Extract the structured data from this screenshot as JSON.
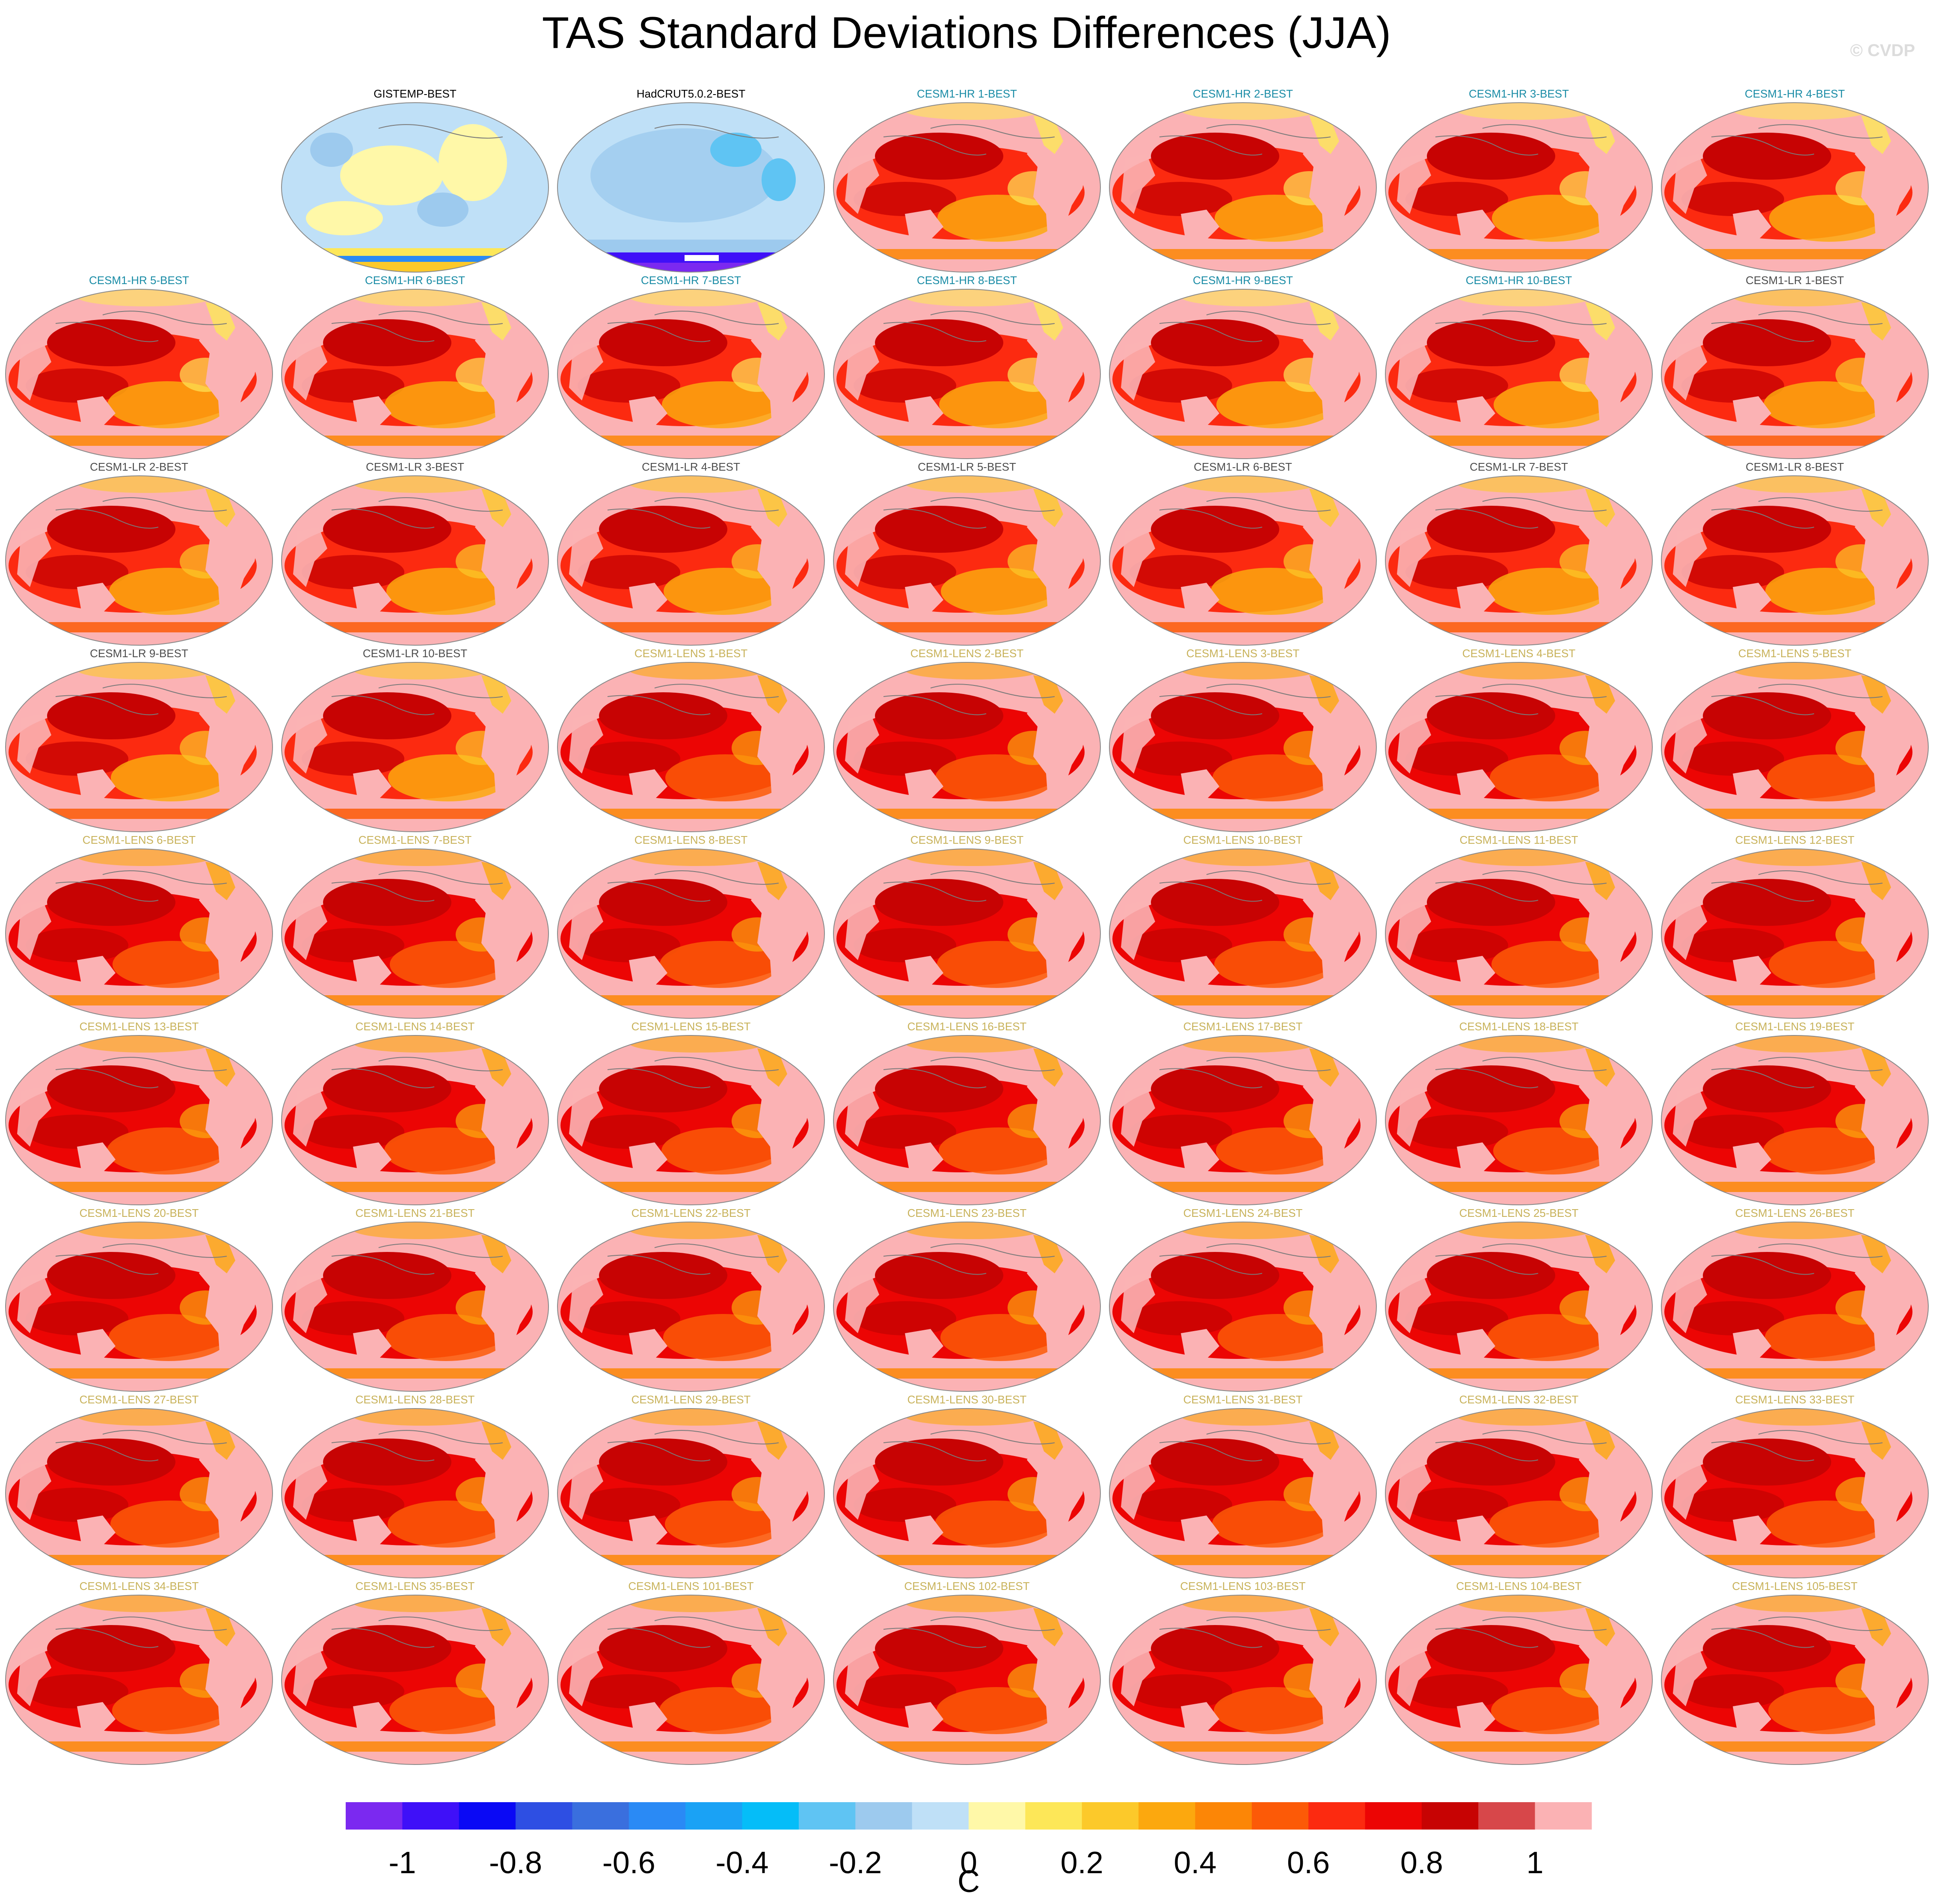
{
  "title": "TAS Standard Deviations Differences (JJA)",
  "credit": "© CVDP",
  "panels": [
    {
      "label": "GISTEMP-BEST",
      "group": "obs",
      "style": "gistemp"
    },
    {
      "label": "HadCRUT5.0.2-BEST",
      "group": "obs",
      "style": "hadcrut"
    },
    {
      "label": "CESM1-HR 1-BEST",
      "group": "hr",
      "style": "hr"
    },
    {
      "label": "CESM1-HR 2-BEST",
      "group": "hr",
      "style": "hr"
    },
    {
      "label": "CESM1-HR 3-BEST",
      "group": "hr",
      "style": "hr"
    },
    {
      "label": "CESM1-HR 4-BEST",
      "group": "hr",
      "style": "hr"
    },
    {
      "label": "CESM1-HR 5-BEST",
      "group": "hr",
      "style": "hr"
    },
    {
      "label": "CESM1-HR 6-BEST",
      "group": "hr",
      "style": "hr"
    },
    {
      "label": "CESM1-HR 7-BEST",
      "group": "hr",
      "style": "hr"
    },
    {
      "label": "CESM1-HR 8-BEST",
      "group": "hr",
      "style": "hr"
    },
    {
      "label": "CESM1-HR 9-BEST",
      "group": "hr",
      "style": "hr"
    },
    {
      "label": "CESM1-HR 10-BEST",
      "group": "hr",
      "style": "hr"
    },
    {
      "label": "CESM1-LR 1-BEST",
      "group": "lr",
      "style": "lr"
    },
    {
      "label": "CESM1-LR 2-BEST",
      "group": "lr",
      "style": "lr"
    },
    {
      "label": "CESM1-LR 3-BEST",
      "group": "lr",
      "style": "lr"
    },
    {
      "label": "CESM1-LR 4-BEST",
      "group": "lr",
      "style": "lr"
    },
    {
      "label": "CESM1-LR 5-BEST",
      "group": "lr",
      "style": "lr"
    },
    {
      "label": "CESM1-LR 6-BEST",
      "group": "lr",
      "style": "lr"
    },
    {
      "label": "CESM1-LR 7-BEST",
      "group": "lr",
      "style": "lr"
    },
    {
      "label": "CESM1-LR 8-BEST",
      "group": "lr",
      "style": "lr"
    },
    {
      "label": "CESM1-LR 9-BEST",
      "group": "lr",
      "style": "lr"
    },
    {
      "label": "CESM1-LR 10-BEST",
      "group": "lr",
      "style": "lr"
    },
    {
      "label": "CESM1-LENS 1-BEST",
      "group": "lens",
      "style": "lens"
    },
    {
      "label": "CESM1-LENS 2-BEST",
      "group": "lens",
      "style": "lens"
    },
    {
      "label": "CESM1-LENS 3-BEST",
      "group": "lens",
      "style": "lens"
    },
    {
      "label": "CESM1-LENS 4-BEST",
      "group": "lens",
      "style": "lens"
    },
    {
      "label": "CESM1-LENS 5-BEST",
      "group": "lens",
      "style": "lens"
    },
    {
      "label": "CESM1-LENS 6-BEST",
      "group": "lens",
      "style": "lens"
    },
    {
      "label": "CESM1-LENS 7-BEST",
      "group": "lens",
      "style": "lens"
    },
    {
      "label": "CESM1-LENS 8-BEST",
      "group": "lens",
      "style": "lens"
    },
    {
      "label": "CESM1-LENS 9-BEST",
      "group": "lens",
      "style": "lens"
    },
    {
      "label": "CESM1-LENS 10-BEST",
      "group": "lens",
      "style": "lens"
    },
    {
      "label": "CESM1-LENS 11-BEST",
      "group": "lens",
      "style": "lens"
    },
    {
      "label": "CESM1-LENS 12-BEST",
      "group": "lens",
      "style": "lens"
    },
    {
      "label": "CESM1-LENS 13-BEST",
      "group": "lens",
      "style": "lens"
    },
    {
      "label": "CESM1-LENS 14-BEST",
      "group": "lens",
      "style": "lens"
    },
    {
      "label": "CESM1-LENS 15-BEST",
      "group": "lens",
      "style": "lens"
    },
    {
      "label": "CESM1-LENS 16-BEST",
      "group": "lens",
      "style": "lens"
    },
    {
      "label": "CESM1-LENS 17-BEST",
      "group": "lens",
      "style": "lens"
    },
    {
      "label": "CESM1-LENS 18-BEST",
      "group": "lens",
      "style": "lens"
    },
    {
      "label": "CESM1-LENS 19-BEST",
      "group": "lens",
      "style": "lens"
    },
    {
      "label": "CESM1-LENS 20-BEST",
      "group": "lens",
      "style": "lens"
    },
    {
      "label": "CESM1-LENS 21-BEST",
      "group": "lens",
      "style": "lens"
    },
    {
      "label": "CESM1-LENS 22-BEST",
      "group": "lens",
      "style": "lens"
    },
    {
      "label": "CESM1-LENS 23-BEST",
      "group": "lens",
      "style": "lens"
    },
    {
      "label": "CESM1-LENS 24-BEST",
      "group": "lens",
      "style": "lens"
    },
    {
      "label": "CESM1-LENS 25-BEST",
      "group": "lens",
      "style": "lens"
    },
    {
      "label": "CESM1-LENS 26-BEST",
      "group": "lens",
      "style": "lens"
    },
    {
      "label": "CESM1-LENS 27-BEST",
      "group": "lens",
      "style": "lens"
    },
    {
      "label": "CESM1-LENS 28-BEST",
      "group": "lens",
      "style": "lens"
    },
    {
      "label": "CESM1-LENS 29-BEST",
      "group": "lens",
      "style": "lens"
    },
    {
      "label": "CESM1-LENS 30-BEST",
      "group": "lens",
      "style": "lens"
    },
    {
      "label": "CESM1-LENS 31-BEST",
      "group": "lens",
      "style": "lens"
    },
    {
      "label": "CESM1-LENS 32-BEST",
      "group": "lens",
      "style": "lens"
    },
    {
      "label": "CESM1-LENS 33-BEST",
      "group": "lens",
      "style": "lens"
    },
    {
      "label": "CESM1-LENS 34-BEST",
      "group": "lens",
      "style": "lens"
    },
    {
      "label": "CESM1-LENS 35-BEST",
      "group": "lens",
      "style": "lens"
    },
    {
      "label": "CESM1-LENS 101-BEST",
      "group": "lens",
      "style": "lens"
    },
    {
      "label": "CESM1-LENS 102-BEST",
      "group": "lens",
      "style": "lens"
    },
    {
      "label": "CESM1-LENS 103-BEST",
      "group": "lens",
      "style": "lens"
    },
    {
      "label": "CESM1-LENS 104-BEST",
      "group": "lens",
      "style": "lens"
    },
    {
      "label": "CESM1-LENS 105-BEST",
      "group": "lens",
      "style": "lens"
    }
  ],
  "colorbar": {
    "unit": "C",
    "colors": [
      "#7b29f0",
      "#3f10f8",
      "#0a09f5",
      "#2e4fe3",
      "#3a6fde",
      "#2a8af5",
      "#1aa2f5",
      "#05bdf8",
      "#5fc4f3",
      "#9dcaee",
      "#bfe0f7",
      "#fff8a8",
      "#fde758",
      "#fcc92a",
      "#fca80e",
      "#fc8606",
      "#fc5a07",
      "#fc2a10",
      "#ec0504",
      "#c70303",
      "#d7474a",
      "#fbb2b4"
    ],
    "tick_values": [
      -1,
      -0.8,
      -0.6,
      -0.4,
      -0.2,
      0,
      0.2,
      0.4,
      0.6,
      0.8,
      1
    ],
    "tick_labels": [
      "-1",
      "-0.8",
      "-0.6",
      "-0.4",
      "-0.2",
      "0",
      "0.2",
      "0.4",
      "0.6",
      "0.8",
      "1"
    ]
  }
}
